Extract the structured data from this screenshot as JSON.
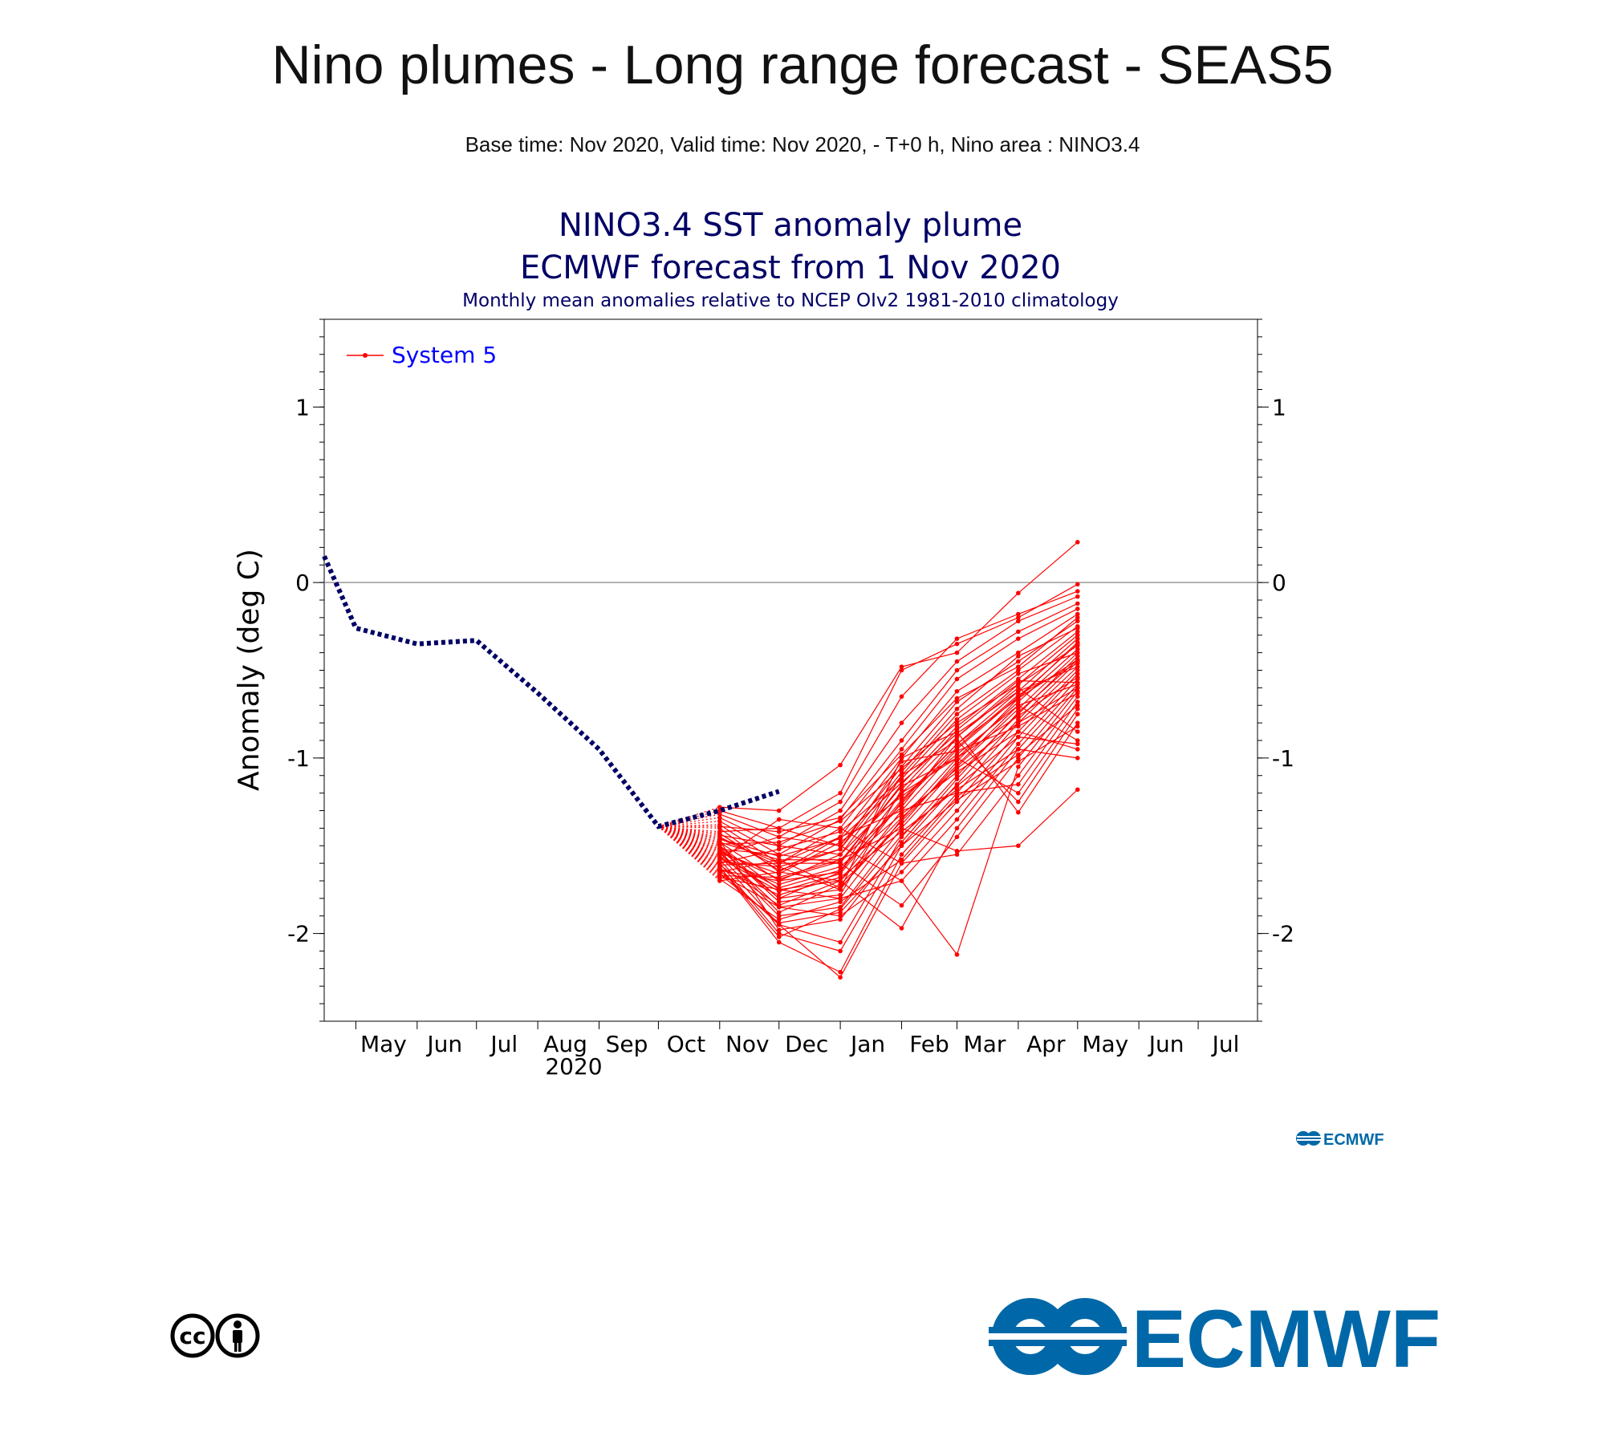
{
  "page": {
    "title": "Nino plumes - Long range forecast - SEAS5",
    "subtitle": "Base time: Nov 2020, Valid time: Nov 2020, - T+0 h, Nino area : NINO3.4"
  },
  "chart_data": {
    "type": "line",
    "title": "NINO3.4 SST anomaly plume",
    "title2": "ECMWF forecast from 1 Nov 2020",
    "subtitle": "Monthly mean anomalies relative to NCEP OIv2 1981-2010 climatology",
    "ylabel": "Anomaly (deg C)",
    "xlabel": "",
    "year_label": "2020",
    "ylim": [
      -2.5,
      1.5
    ],
    "yticks": [
      1,
      0,
      -1,
      -2
    ],
    "ytick_labels": [
      "1",
      "0",
      "-1",
      "-2"
    ],
    "x_months": [
      "May",
      "Jun",
      "Jul",
      "Aug",
      "Sep",
      "Oct",
      "Nov",
      "Dec",
      "Jan",
      "Feb",
      "Mar",
      "Apr",
      "May",
      "Jun",
      "Jul"
    ],
    "grid": false,
    "zero_line": true,
    "legend": {
      "position": "top-left",
      "entries": [
        {
          "name": "System 5",
          "color": "#ff0000"
        }
      ]
    },
    "colors": {
      "observed": "#000066",
      "forecast": "#ff0000",
      "title": "#000066",
      "legend_text": "#0000ff"
    },
    "observed": {
      "x": [
        "2020-04-15",
        "2020-05-01",
        "2020-06-01",
        "2020-07-01",
        "2020-08-01",
        "2020-09-01",
        "2020-10-01",
        "2020-11-01",
        "2020-12-01"
      ],
      "y": [
        0.15,
        -0.26,
        -0.35,
        -0.33,
        -0.63,
        -0.95,
        -1.39,
        -1.3,
        -1.19
      ]
    },
    "forecast": {
      "start": {
        "x": "2020-10-01",
        "y": -1.39
      },
      "x": [
        "2020-11-01",
        "2020-12-01",
        "2021-01-01",
        "2021-02-01",
        "2021-03-01",
        "2021-04-01",
        "2021-05-01"
      ],
      "members": [
        [
          -1.28,
          -1.3,
          -1.04,
          -0.48,
          -0.4,
          -0.06,
          0.23
        ],
        [
          -1.3,
          -1.4,
          -1.2,
          -0.5,
          -0.35,
          -0.2,
          -0.01
        ],
        [
          -1.32,
          -1.45,
          -1.25,
          -0.65,
          -0.32,
          -0.18,
          -0.05
        ],
        [
          -1.34,
          -1.5,
          -1.3,
          -0.8,
          -0.45,
          -0.22,
          -0.08
        ],
        [
          -1.36,
          -1.55,
          -1.35,
          -0.9,
          -0.5,
          -0.28,
          -0.12
        ],
        [
          -1.38,
          -1.6,
          -1.4,
          -0.95,
          -0.55,
          -0.32,
          -0.15
        ],
        [
          -1.4,
          -1.65,
          -1.45,
          -1.0,
          -0.62,
          -0.4,
          -0.18
        ],
        [
          -1.42,
          -1.4,
          -1.5,
          -1.05,
          -0.68,
          -0.45,
          -0.22
        ],
        [
          -1.44,
          -1.5,
          -1.55,
          -1.1,
          -0.75,
          -0.5,
          -0.25
        ],
        [
          -1.46,
          -1.6,
          -1.6,
          -1.15,
          -0.82,
          -0.55,
          -0.28
        ],
        [
          -1.48,
          -1.7,
          -1.65,
          -1.2,
          -0.88,
          -0.58,
          -0.3
        ],
        [
          -1.5,
          -1.75,
          -1.7,
          -1.25,
          -0.92,
          -0.62,
          -0.32
        ],
        [
          -1.52,
          -1.8,
          -1.75,
          -1.3,
          -0.95,
          -0.65,
          -0.35
        ],
        [
          -1.54,
          -1.85,
          -1.8,
          -1.35,
          -1.0,
          -0.68,
          -0.38
        ],
        [
          -1.56,
          -1.9,
          -1.85,
          -1.4,
          -1.05,
          -0.72,
          -0.4
        ],
        [
          -1.58,
          -1.95,
          -2.05,
          -1.45,
          -1.1,
          -0.75,
          -0.42
        ],
        [
          -1.6,
          -2.0,
          -2.1,
          -1.5,
          -1.15,
          -0.78,
          -0.45
        ],
        [
          -1.62,
          -2.05,
          -2.22,
          -1.55,
          -1.2,
          -0.8,
          -0.48
        ],
        [
          -1.64,
          -1.95,
          -2.25,
          -1.6,
          -1.25,
          -0.85,
          -0.5
        ],
        [
          -1.66,
          -1.85,
          -1.9,
          -1.65,
          -1.3,
          -0.88,
          -0.52
        ],
        [
          -1.68,
          -1.75,
          -1.8,
          -1.7,
          -1.35,
          -0.92,
          -0.55
        ],
        [
          -1.7,
          -1.65,
          -1.7,
          -1.97,
          -1.4,
          -0.95,
          -0.58
        ],
        [
          -1.52,
          -1.55,
          -1.6,
          -1.84,
          -1.45,
          -1.0,
          -0.6
        ],
        [
          -1.55,
          -1.45,
          -1.5,
          -1.7,
          -2.12,
          -1.05,
          -0.62
        ],
        [
          -1.58,
          -1.35,
          -1.4,
          -1.6,
          -1.55,
          -1.1,
          -0.65
        ],
        [
          -1.61,
          -1.6,
          -1.45,
          -1.3,
          -1.2,
          -1.15,
          -0.68
        ],
        [
          -1.64,
          -1.7,
          -1.55,
          -1.2,
          -1.0,
          -1.2,
          -0.72
        ],
        [
          -1.5,
          -1.8,
          -1.65,
          -1.1,
          -0.9,
          -1.25,
          -0.75
        ],
        [
          -1.45,
          -1.62,
          -1.75,
          -1.0,
          -0.85,
          -1.31,
          -0.8
        ],
        [
          -1.48,
          -1.58,
          -1.58,
          -1.4,
          -1.53,
          -1.5,
          -1.18
        ],
        [
          -1.54,
          -1.66,
          -1.48,
          -1.22,
          -0.98,
          -0.7,
          -0.9
        ],
        [
          -1.57,
          -1.72,
          -1.62,
          -1.32,
          -1.08,
          -0.85,
          -0.95
        ],
        [
          -1.63,
          -1.78,
          -1.68,
          -1.42,
          -1.18,
          -0.95,
          -1.0
        ],
        [
          -1.67,
          -1.68,
          -1.58,
          -1.28,
          -0.88,
          -0.6,
          -0.85
        ],
        [
          -1.6,
          -1.52,
          -1.42,
          -1.12,
          -0.78,
          -0.52,
          -0.4
        ],
        [
          -1.53,
          -1.88,
          -1.72,
          -1.38,
          -1.02,
          -0.66,
          -0.34
        ],
        [
          -1.47,
          -1.98,
          -1.92,
          -1.48,
          -1.12,
          -0.74,
          -0.44
        ],
        [
          -1.59,
          -1.62,
          -1.52,
          -1.08,
          -0.72,
          -0.42,
          -0.26
        ],
        [
          -1.69,
          -1.92,
          -1.82,
          -1.58,
          -1.22,
          -0.98,
          -0.7
        ],
        [
          -1.56,
          -1.74,
          -1.64,
          -1.26,
          -0.94,
          -0.64,
          -0.46
        ],
        [
          -1.51,
          -1.82,
          -1.78,
          -1.18,
          -0.84,
          -0.56,
          -0.57
        ],
        [
          -1.65,
          -1.58,
          -1.74,
          -1.36,
          -1.04,
          -0.7,
          -0.58
        ],
        [
          -1.43,
          -1.64,
          -1.52,
          -1.02,
          -0.96,
          -0.82,
          -0.63
        ],
        [
          -1.62,
          -2.02,
          -1.86,
          -1.44,
          -1.16,
          -0.88,
          -0.92
        ],
        [
          -1.49,
          -1.48,
          -1.36,
          -1.06,
          -0.8,
          -0.58,
          -0.36
        ],
        [
          -1.57,
          -1.76,
          -1.66,
          -1.24,
          -0.92,
          -0.66,
          -0.44
        ],
        [
          -1.53,
          -1.69,
          -1.59,
          -1.16,
          -1.0,
          -0.76,
          -0.54
        ],
        [
          -1.61,
          -1.84,
          -1.7,
          -1.34,
          -1.06,
          -0.8,
          -0.6
        ],
        [
          -1.46,
          -1.56,
          -1.46,
          -1.14,
          -0.86,
          -0.62,
          -0.48
        ],
        [
          -1.66,
          -1.94,
          -1.88,
          -1.5,
          -1.24,
          -1.02,
          -0.82
        ],
        [
          -1.39,
          -1.42,
          -1.34,
          -0.98,
          -0.66,
          -0.48,
          -0.2
        ]
      ]
    }
  },
  "logos": {
    "small_logo_text": "ECMWF",
    "big_logo_text": "ECMWF",
    "cc_text": "cc",
    "brand_color": "#0068a8"
  }
}
